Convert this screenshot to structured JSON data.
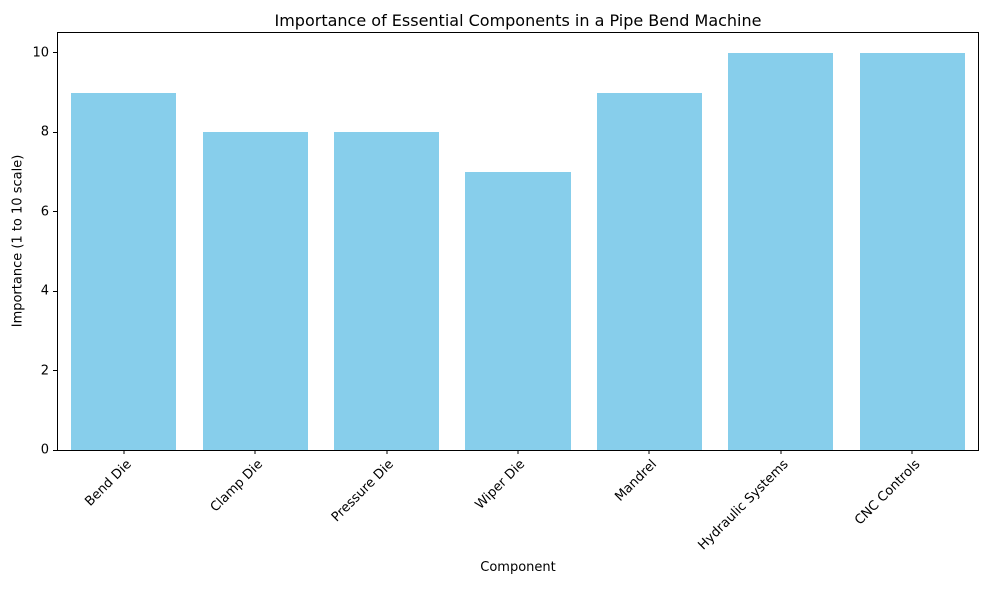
{
  "chart_data": {
    "type": "bar",
    "title": "Importance of Essential Components in a Pipe Bend Machine",
    "xlabel": "Component",
    "ylabel": "Importance (1 to 10 scale)",
    "categories": [
      "Bend Die",
      "Clamp Die",
      "Pressure Die",
      "Wiper Die",
      "Mandrel",
      "Hydraulic Systems",
      "CNC Controls"
    ],
    "values": [
      9,
      8,
      8,
      7,
      9,
      10,
      10
    ],
    "ylim": [
      0,
      10.5
    ],
    "yticks": [
      0,
      2,
      4,
      6,
      8,
      10
    ],
    "bar_width_fraction": 0.8,
    "grid": false,
    "legend_position": "none",
    "colors": {
      "bar": "#87CEEB",
      "background": "#ffffff",
      "text": "#000000",
      "spine": "#000000"
    }
  }
}
